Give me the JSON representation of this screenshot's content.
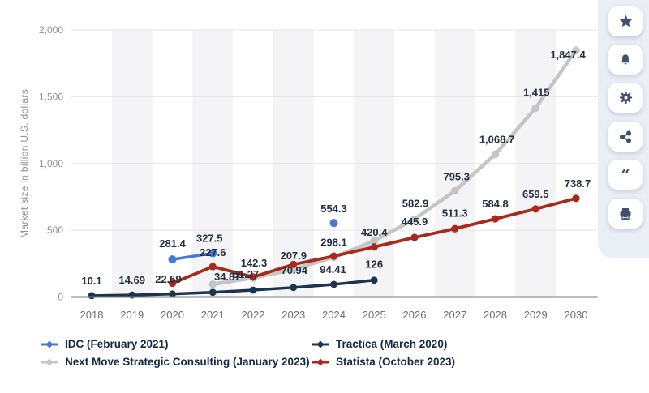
{
  "chart_data": {
    "type": "line",
    "title": "",
    "ylabel": "Market size in billion U.S. dollars",
    "ylim": [
      0,
      2000
    ],
    "grid": true,
    "legend_position": "bottom",
    "x_years": [
      2018,
      2019,
      2020,
      2021,
      2022,
      2023,
      2024,
      2025,
      2026,
      2027,
      2028,
      2029,
      2030
    ],
    "banded_years": [
      2019,
      2021,
      2023,
      2025,
      2027,
      2029
    ],
    "yticks": [
      {
        "v": 0,
        "label": "0"
      },
      {
        "v": 500,
        "label": "500"
      },
      {
        "v": 1000,
        "label": "1,000"
      },
      {
        "v": 1500,
        "label": "1,500"
      },
      {
        "v": 2000,
        "label": "2,000"
      }
    ],
    "z_order": [
      2,
      3,
      1,
      0
    ],
    "series": [
      {
        "name": "IDC (February 2021)",
        "color": "#4577d6",
        "width": 3.5,
        "dot_r": 5,
        "segments": [
          [
            {
              "year": 2020,
              "v": 281.4,
              "label": "281.4",
              "dx": 0,
              "dy": -15
            },
            {
              "year": 2021,
              "v": 327.5,
              "label": "327.5",
              "dx": -4,
              "dy": -14
            }
          ],
          [
            {
              "year": 2024,
              "v": 554.3,
              "label": "554.3",
              "dx": 0,
              "dy": -13
            }
          ]
        ]
      },
      {
        "name": "Tractica (March 2020)",
        "color": "#1b3451",
        "width": 3.5,
        "dot_r": 4.4,
        "segments": [
          [
            {
              "year": 2018,
              "v": 10.1,
              "label": "10.1",
              "dx": 0,
              "dy": -14
            },
            {
              "year": 2019,
              "v": 14.69,
              "label": "14.69",
              "dx": 0,
              "dy": -14
            },
            {
              "year": 2020,
              "v": 22.59,
              "label": "22.59",
              "dx": -5,
              "dy": -14
            },
            {
              "year": 2021,
              "v": 34.87,
              "label": "34.87",
              "dx": 18,
              "dy": -15
            },
            {
              "year": 2022,
              "v": 51.27,
              "label": "51.27",
              "dx": -9,
              "dy": -15
            },
            {
              "year": 2023,
              "v": 70.94,
              "label": "70.94",
              "dx": 1,
              "dy": -17
            },
            {
              "year": 2024,
              "v": 94.41,
              "label": "94.41",
              "dx": -1,
              "dy": -14
            },
            {
              "year": 2025,
              "v": 126,
              "label": "126",
              "dx": 0,
              "dy": -15
            }
          ]
        ]
      },
      {
        "name": "Next Move Strategic Consulting (January 2023)",
        "color": "#c5c5c5",
        "width": 4.5,
        "dot_r": 4.8,
        "segments": [
          [
            {
              "year": 2021,
              "v": 95.6,
              "label": "",
              "dx": 0,
              "dy": 0
            },
            {
              "year": 2022,
              "v": 142.3,
              "label": "142.3",
              "dx": 1,
              "dy": -14
            },
            {
              "year": 2023,
              "v": 207.9,
              "label": "207.9",
              "dx": 0,
              "dy": -12
            },
            {
              "year": 2024,
              "v": 298.1,
              "label": "298.1",
              "dx": 0,
              "dy": -14
            },
            {
              "year": 2025,
              "v": 420.4,
              "label": "420.4",
              "dx": 0,
              "dy": -6
            },
            {
              "year": 2026,
              "v": 582.9,
              "label": "582.9",
              "dx": 1,
              "dy": -15
            },
            {
              "year": 2027,
              "v": 795.3,
              "label": "795.3",
              "dx": 2,
              "dy": -13
            },
            {
              "year": 2028,
              "v": 1068.7,
              "label": "1,068.7",
              "dx": 2,
              "dy": -14
            },
            {
              "year": 2029,
              "v": 1415,
              "label": "1,415",
              "dx": 1,
              "dy": -15
            },
            {
              "year": 2030,
              "v": 1847.4,
              "label": "1,847.4",
              "dx": -10,
              "dy": 10
            }
          ]
        ]
      },
      {
        "name": "Statista (October 2023)",
        "color": "#a82a1e",
        "width": 3.8,
        "dot_r": 4.6,
        "segments": [
          [
            {
              "year": 2020,
              "v": 103,
              "label": "",
              "dx": 0,
              "dy": 0
            },
            {
              "year": 2021,
              "v": 227.6,
              "label": "227.6",
              "dx": 0,
              "dy": -13
            },
            {
              "year": 2022,
              "v": 150,
              "label": "",
              "dx": 0,
              "dy": 0
            },
            {
              "year": 2023,
              "v": 244,
              "label": "",
              "dx": 0,
              "dy": 0
            },
            {
              "year": 2024,
              "v": 306,
              "label": "",
              "dx": 0,
              "dy": 0
            },
            {
              "year": 2025,
              "v": 375,
              "label": "",
              "dx": 0,
              "dy": 0
            },
            {
              "year": 2026,
              "v": 445.9,
              "label": "445.9",
              "dx": 0,
              "dy": -15
            },
            {
              "year": 2027,
              "v": 511.3,
              "label": "511.3",
              "dx": 0,
              "dy": -15
            },
            {
              "year": 2028,
              "v": 584.8,
              "label": "584.8",
              "dx": 0,
              "dy": -14
            },
            {
              "year": 2029,
              "v": 659.5,
              "label": "659.5",
              "dx": 0,
              "dy": -14
            },
            {
              "year": 2030,
              "v": 738.7,
              "label": "738.7",
              "dx": 2,
              "dy": -14
            }
          ]
        ]
      }
    ],
    "style": {
      "band_fill": "#f4f4f6",
      "gridline_color": "#e4e4e6",
      "baseline_color": "#797b7e",
      "tick_text_color": "#8f9194",
      "year_text_color": "#6e7073",
      "data_label_color": "#22303f"
    }
  },
  "sidebar": {
    "buttons": [
      {
        "icon": "star"
      },
      {
        "icon": "bell"
      },
      {
        "icon": "gear"
      },
      {
        "icon": "share"
      },
      {
        "icon": "quote"
      },
      {
        "icon": "printer"
      }
    ]
  }
}
